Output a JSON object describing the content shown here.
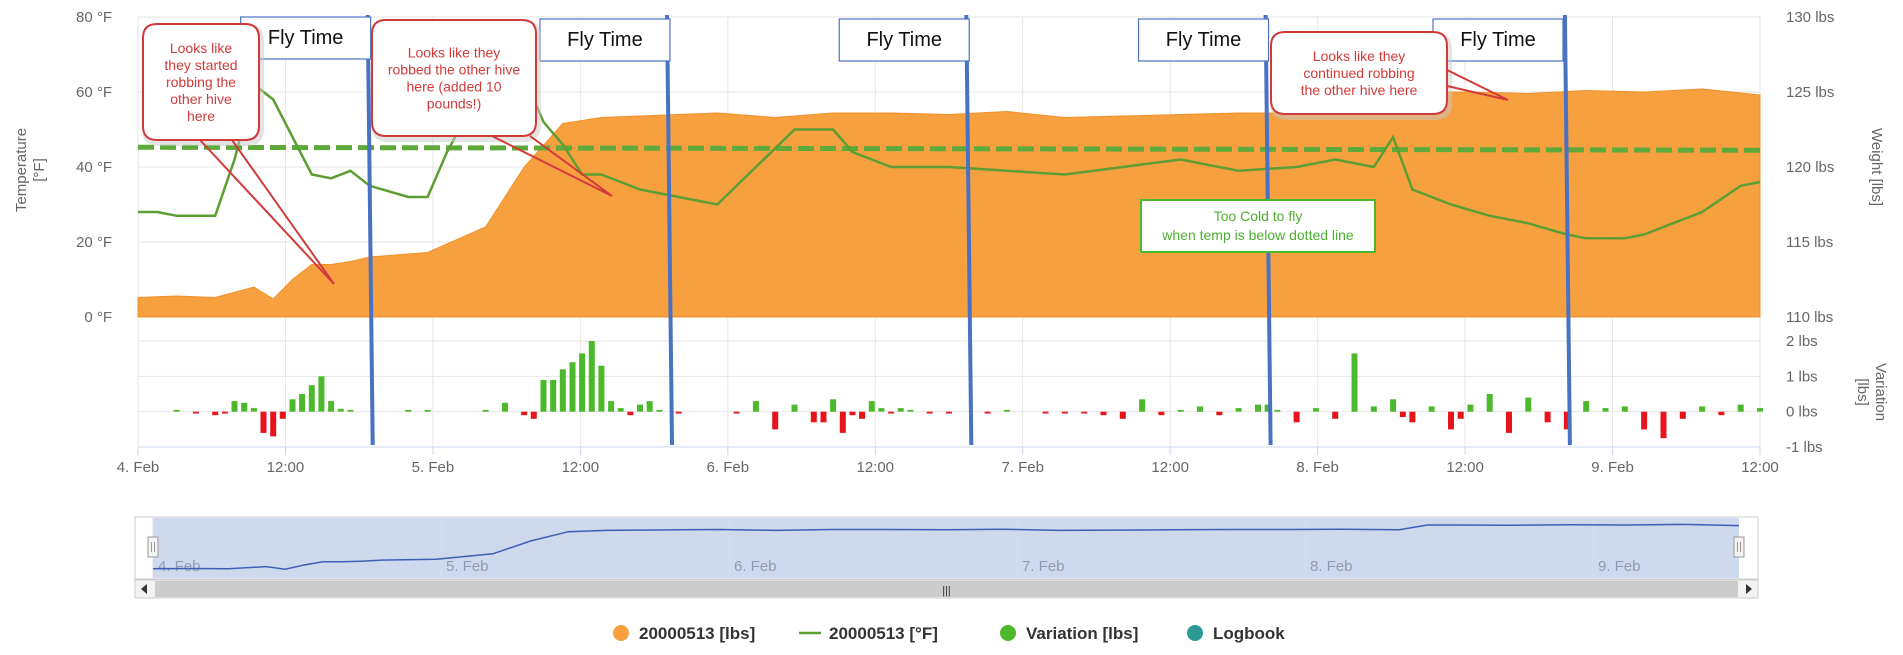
{
  "chart_data": {
    "type": "area",
    "x_ticks": [
      "4. Feb",
      "12:00",
      "5. Feb",
      "12:00",
      "6. Feb",
      "12:00",
      "7. Feb",
      "12:00",
      "8. Feb",
      "12:00",
      "9. Feb",
      "12:00"
    ],
    "y_left": {
      "title": "Temperature [°F]",
      "ticks": [
        "80 °F",
        "60 °F",
        "40 °F",
        "20 °F",
        "0 °F"
      ],
      "range": [
        0,
        80
      ]
    },
    "y_right": {
      "title": "Weight [lbs]",
      "ticks": [
        "130 lbs",
        "125 lbs",
        "120 lbs",
        "115 lbs",
        "110 lbs"
      ],
      "range": [
        110,
        130
      ]
    },
    "y_variation": {
      "title": "Variation [lbs]",
      "ticks": [
        "2 lbs",
        "1 lbs",
        "0 lbs",
        "-1 lbs"
      ],
      "range": [
        -1,
        2
      ]
    },
    "threshold_temp_f": 45,
    "series": [
      {
        "name": "20000513 [lbs]",
        "color": "#f7a03f",
        "axis": "weight",
        "x": [
          0,
          4,
          8,
          12,
          14,
          16,
          18,
          20,
          22,
          24,
          30,
          36,
          40,
          44,
          48,
          52,
          56,
          60,
          66,
          72,
          78,
          84,
          90,
          96,
          102,
          108,
          114,
          120,
          126,
          132,
          135,
          138,
          144,
          150,
          156,
          162,
          168
        ],
        "values": [
          111.3,
          111.4,
          111.3,
          112,
          111.2,
          112.5,
          113.5,
          113.5,
          113.7,
          114,
          114.3,
          116,
          120,
          122.9,
          123.3,
          123.4,
          123.5,
          123.6,
          123.3,
          123.6,
          123.6,
          123.5,
          123.7,
          123.3,
          123.4,
          123.5,
          123.6,
          123.6,
          123.7,
          123.5,
          125,
          125,
          124.9,
          125.1,
          125,
          125.2,
          124.8
        ]
      },
      {
        "name": "20000513 [°F]",
        "color": "#5c9e31",
        "axis": "temperature",
        "x": [
          0,
          2,
          4,
          8,
          10,
          12,
          14,
          16,
          18,
          20,
          22,
          24,
          28,
          30,
          32,
          36,
          40,
          42,
          44,
          46,
          48,
          52,
          56,
          60,
          64,
          66,
          68,
          72,
          74,
          78,
          84,
          90,
          96,
          102,
          108,
          114,
          120,
          124,
          128,
          130,
          132,
          136,
          140,
          144,
          148,
          150,
          154,
          156,
          162,
          166,
          168
        ],
        "values": [
          28,
          28,
          27,
          27,
          42,
          62,
          58,
          48,
          38,
          37,
          39,
          35,
          32,
          32,
          44,
          63,
          64,
          52,
          46,
          38,
          38,
          34,
          32,
          30,
          40,
          45,
          50,
          50,
          44,
          40,
          40,
          39,
          38,
          40,
          42,
          39,
          40,
          42,
          40,
          48,
          34,
          30,
          27,
          25,
          22,
          21,
          21,
          22,
          28,
          35,
          36
        ]
      },
      {
        "name": "Variation [lbs]",
        "color": "#4cb82c",
        "axis": "variation",
        "x": [
          4,
          6,
          8,
          9,
          10,
          11,
          12,
          13,
          14,
          15,
          16,
          17,
          18,
          19,
          20,
          21,
          22,
          28,
          30,
          36,
          38,
          40,
          41,
          42,
          43,
          44,
          45,
          46,
          47,
          48,
          49,
          50,
          51,
          52,
          53,
          54,
          56,
          62,
          64,
          66,
          68,
          70,
          71,
          72,
          73,
          74,
          75,
          76,
          77,
          78,
          79,
          80,
          82,
          84,
          88,
          90,
          94,
          96,
          98,
          100,
          102,
          104,
          106,
          108,
          110,
          112,
          114,
          116,
          117,
          118,
          120,
          122,
          124,
          126,
          128,
          130,
          131,
          132,
          134,
          136,
          137,
          138,
          140,
          142,
          144,
          146,
          148,
          150,
          152,
          154,
          156,
          158,
          160,
          162,
          164,
          166,
          168
        ],
        "values": [
          0.05,
          -0.05,
          -0.1,
          -0.05,
          0.3,
          0.25,
          0.1,
          -0.6,
          -0.7,
          -0.2,
          0.35,
          0.5,
          0.75,
          1.0,
          0.3,
          0.08,
          0.05,
          0.05,
          0.05,
          0.05,
          0.25,
          -0.1,
          -0.2,
          0.9,
          0.9,
          1.2,
          1.4,
          1.65,
          2.0,
          1.3,
          0.3,
          0.1,
          -0.1,
          0.2,
          0.3,
          0.05,
          -0.05,
          -0.05,
          0.3,
          -0.5,
          0.2,
          -0.3,
          -0.3,
          0.35,
          -0.6,
          -0.1,
          -0.2,
          0.3,
          0.1,
          -0.05,
          0.1,
          0.05,
          -0.05,
          -0.05,
          -0.05,
          0.05,
          -0.05,
          -0.05,
          -0.05,
          -0.1,
          -0.2,
          0.35,
          -0.1,
          0.05,
          0.15,
          -0.1,
          0.1,
          0.2,
          0.2,
          0.05,
          -0.3,
          0.1,
          -0.2,
          1.65,
          0.15,
          0.35,
          -0.15,
          -0.3,
          0.15,
          -0.5,
          -0.2,
          0.2,
          0.5,
          -0.6,
          0.4,
          -0.3,
          -0.5,
          0.3,
          0.1,
          0.15,
          -0.5,
          -0.75,
          -0.2,
          0.15,
          -0.1,
          0.2,
          0.1
        ]
      },
      {
        "name": "Logbook",
        "color": "#2b9a94",
        "axis": "none",
        "values": []
      }
    ],
    "annotations": {
      "fly_time_label": "Fly Time",
      "fly_time_markers_x": [
        24,
        55,
        86,
        117,
        148
      ],
      "fly_box_positions_x": [
        15.5,
        46.5,
        77.5,
        108.5,
        139
      ],
      "callout_1": [
        "Looks like",
        "they started",
        "robbing the",
        "other hive",
        "here"
      ],
      "callout_2": [
        "Looks like they",
        "robbed the other hive",
        "here (added 10",
        "pounds!)"
      ],
      "callout_3": [
        "Looks like they",
        "continued robbing",
        "the other hive here"
      ],
      "cold_note": [
        "Too Cold to fly",
        "when temp is below dotted line"
      ]
    },
    "navigator": {
      "labels": [
        "4. Feb",
        "5. Feb",
        "6. Feb",
        "7. Feb",
        "8. Feb",
        "9. Feb"
      ],
      "handle_glyph": "|||"
    },
    "legend_placement": "bottom-center",
    "grid": true
  },
  "colors": {
    "weight": "#f7a03f",
    "temperature": "#5c9e31",
    "variation_pos": "#4cb82c",
    "variation_neg": "#e8141b",
    "fly_line": "#4a72c4",
    "threshold": "#5da93a",
    "callout_border": "#d23a3a",
    "navigator_fill": "#c6d2ea",
    "navigator_line": "#3f5fb5",
    "logbook": "#2b9a94"
  }
}
